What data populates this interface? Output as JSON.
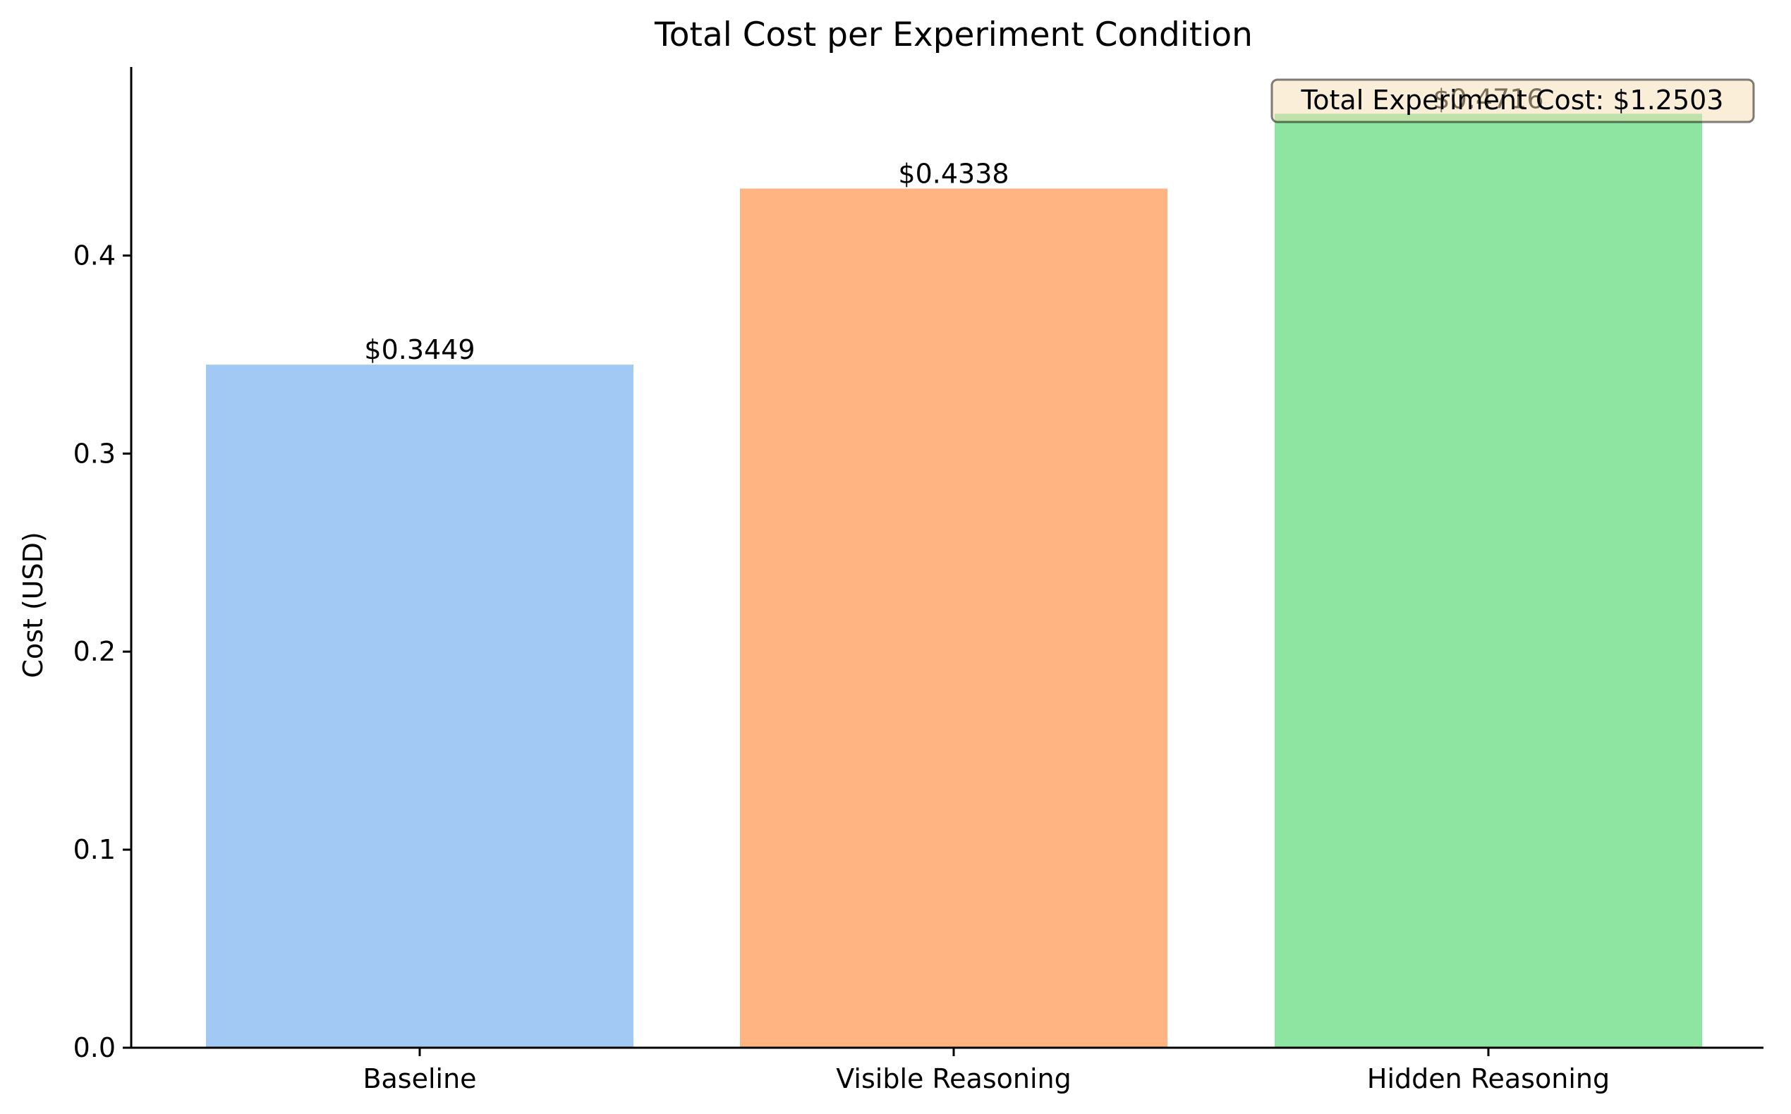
{
  "chart_data": {
    "type": "bar",
    "title": "Total Cost per Experiment Condition",
    "xlabel": "",
    "ylabel": "Cost (USD)",
    "categories": [
      "Baseline",
      "Visible Reasoning",
      "Hidden Reasoning"
    ],
    "values": [
      0.3449,
      0.4338,
      0.4716
    ],
    "value_labels": [
      "$0.3449",
      "$0.4338",
      "$0.4716"
    ],
    "colors": [
      "#a1c9f4",
      "#ffb482",
      "#8de5a1"
    ],
    "ylim": [
      0,
      0.4952
    ],
    "yticks": [
      0.0,
      0.1,
      0.2,
      0.3,
      0.4
    ],
    "ytick_labels": [
      "0.0",
      "0.1",
      "0.2",
      "0.3",
      "0.4"
    ],
    "grid": false,
    "annotation": {
      "text": "Total Experiment Cost: $1.2503",
      "placement": "top-right",
      "background": "#f5deb3",
      "border": "#000000"
    }
  }
}
